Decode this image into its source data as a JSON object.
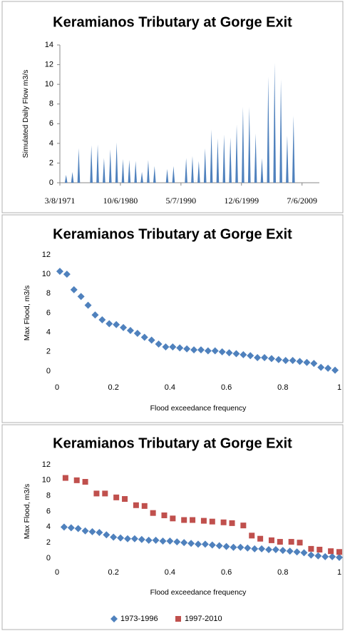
{
  "chart_data": [
    {
      "type": "spike",
      "title": "Keramianos Tributary at Gorge Exit",
      "y_label": "Simulated Daily Flow m3/s",
      "x": [
        26359,
        26725,
        27090,
        27820,
        28186,
        28551,
        28916,
        29281,
        29647,
        30012,
        30377,
        30742,
        31108,
        31473,
        32203,
        32569,
        33299,
        33664,
        34030,
        34395,
        34760,
        35125,
        35491,
        35856,
        36221,
        36586,
        36952,
        37317,
        37682,
        38047,
        38413,
        38778,
        39143,
        39508
      ],
      "values": [
        0.8,
        1.1,
        3.5,
        3.8,
        3.9,
        2.5,
        3.4,
        4.1,
        2.4,
        2.3,
        2.2,
        1.1,
        2.3,
        1.7,
        1.4,
        1.7,
        2.5,
        2.7,
        2.2,
        3.5,
        5.4,
        4.5,
        4.9,
        4.6,
        5.9,
        7.7,
        7.7,
        5.0,
        2.5,
        10.8,
        12.2,
        10.5,
        4.8,
        6.8
      ],
      "color": "#4f81bd",
      "xlim": [
        26000,
        41000
      ],
      "ylim": [
        0,
        14
      ],
      "xticks": [
        {
          "value": 26000,
          "label": "3/8/1971"
        },
        {
          "value": 29500,
          "label": "10/6/1980"
        },
        {
          "value": 33000,
          "label": "5/7/1990"
        },
        {
          "value": 36500,
          "label": "12/6/1999"
        },
        {
          "value": 40000,
          "label": "7/6/2009"
        }
      ],
      "yticks": [
        0,
        2,
        4,
        6,
        8,
        10,
        12,
        14
      ]
    },
    {
      "type": "scatter",
      "title": "Keramianos Tributary at Gorge Exit",
      "y_label": "Max Flood, m3/s",
      "x_label": "Flood exceedance frequency",
      "x": [
        0.01,
        0.035,
        0.06,
        0.085,
        0.11,
        0.135,
        0.16,
        0.185,
        0.21,
        0.235,
        0.26,
        0.285,
        0.31,
        0.335,
        0.36,
        0.385,
        0.41,
        0.435,
        0.46,
        0.485,
        0.51,
        0.535,
        0.56,
        0.585,
        0.61,
        0.635,
        0.66,
        0.685,
        0.71,
        0.735,
        0.76,
        0.785,
        0.81,
        0.835,
        0.86,
        0.885,
        0.91,
        0.935,
        0.96,
        0.985
      ],
      "values": [
        10.3,
        10.0,
        8.4,
        7.7,
        6.8,
        5.8,
        5.3,
        4.9,
        4.8,
        4.5,
        4.2,
        3.9,
        3.5,
        3.2,
        2.8,
        2.5,
        2.5,
        2.4,
        2.3,
        2.2,
        2.2,
        2.1,
        2.1,
        2.0,
        1.9,
        1.8,
        1.7,
        1.6,
        1.4,
        1.4,
        1.3,
        1.2,
        1.1,
        1.1,
        1.0,
        0.9,
        0.8,
        0.4,
        0.3,
        0.1
      ],
      "color": "#4f81bd",
      "marker": "diamond",
      "xlim": [
        0,
        1
      ],
      "ylim": [
        0,
        12
      ],
      "xticks": [
        0,
        0.2,
        0.4,
        0.6,
        0.8,
        1
      ],
      "yticks": [
        0,
        2,
        4,
        6,
        8,
        10,
        12
      ]
    },
    {
      "type": "scatter",
      "title": "Keramianos Tributary at Gorge Exit",
      "y_label": "Max Flood, m3/s",
      "x_label": "Flood exceedance frequency",
      "series": [
        {
          "name": "1973-1996",
          "color": "#4f81bd",
          "marker": "diamond",
          "x": [
            0.025,
            0.05,
            0.075,
            0.1,
            0.125,
            0.15,
            0.175,
            0.2,
            0.225,
            0.25,
            0.275,
            0.3,
            0.325,
            0.35,
            0.375,
            0.4,
            0.425,
            0.45,
            0.475,
            0.5,
            0.525,
            0.55,
            0.575,
            0.6,
            0.625,
            0.65,
            0.675,
            0.7,
            0.725,
            0.75,
            0.775,
            0.8,
            0.825,
            0.85,
            0.875,
            0.9,
            0.925,
            0.95,
            0.975,
            1
          ],
          "values": [
            4.0,
            3.9,
            3.8,
            3.5,
            3.4,
            3.3,
            3.0,
            2.7,
            2.6,
            2.5,
            2.5,
            2.4,
            2.3,
            2.3,
            2.2,
            2.2,
            2.1,
            2.0,
            1.9,
            1.8,
            1.8,
            1.7,
            1.6,
            1.5,
            1.4,
            1.4,
            1.3,
            1.2,
            1.2,
            1.1,
            1.1,
            1.0,
            0.9,
            0.8,
            0.7,
            0.4,
            0.3,
            0.2,
            0.2,
            0.1
          ]
        },
        {
          "name": "1997-2010",
          "color": "#c0504d",
          "marker": "square",
          "x": [
            0.03,
            0.07,
            0.1,
            0.14,
            0.17,
            0.21,
            0.24,
            0.28,
            0.31,
            0.34,
            0.38,
            0.41,
            0.45,
            0.48,
            0.52,
            0.55,
            0.59,
            0.62,
            0.66,
            0.69,
            0.72,
            0.76,
            0.79,
            0.83,
            0.86,
            0.9,
            0.93,
            0.97,
            1
          ],
          "values": [
            10.3,
            10.0,
            9.8,
            8.3,
            8.3,
            7.8,
            7.6,
            6.8,
            6.7,
            5.8,
            5.5,
            5.1,
            4.9,
            4.9,
            4.8,
            4.7,
            4.6,
            4.5,
            4.2,
            2.9,
            2.5,
            2.3,
            2.1,
            2.1,
            2.0,
            1.2,
            1.1,
            0.9,
            0.8
          ]
        }
      ],
      "legend": "bottom",
      "xlim": [
        0,
        1
      ],
      "ylim": [
        0,
        12
      ],
      "xticks": [
        0,
        0.2,
        0.4,
        0.6,
        0.8,
        1
      ],
      "yticks": [
        0,
        2,
        4,
        6,
        8,
        10,
        12
      ]
    }
  ]
}
